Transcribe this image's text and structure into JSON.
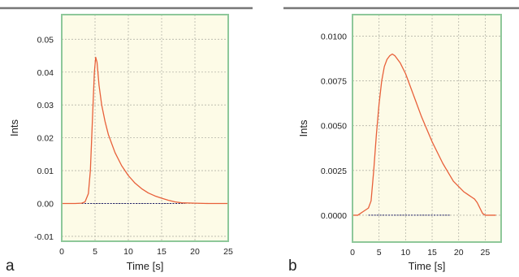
{
  "colors": {
    "plot_background": "#fdfbe7",
    "plot_border": "#8ec89a",
    "top_rule": "#777777",
    "grid": "#b5b5a8",
    "curve": "#e8603a",
    "baseline": "#1a1a66"
  },
  "chart_data": [
    {
      "panel_label": "a",
      "type": "line",
      "title": "",
      "xlabel": "Time [s]",
      "ylabel": "Ints",
      "xlim": [
        0,
        25
      ],
      "ylim": [
        -0.0115,
        0.0575
      ],
      "x_ticks": [
        0,
        5,
        10,
        15,
        20,
        25
      ],
      "y_ticks": [
        -0.01,
        0.0,
        0.01,
        0.02,
        0.03,
        0.04,
        0.05
      ],
      "x_tick_labels": [
        "0",
        "5",
        "10",
        "15",
        "20",
        "25"
      ],
      "y_tick_labels": [
        "-0.01",
        "0.00",
        "0.01",
        "0.02",
        "0.03",
        "0.04",
        "0.05"
      ],
      "grid": true,
      "series": [
        {
          "x": [
            0,
            2,
            3,
            3.5,
            4,
            4.3,
            4.6,
            4.9,
            5.1,
            5.3,
            5.6,
            6,
            6.5,
            7,
            8,
            9,
            10,
            11,
            12,
            13,
            14,
            15,
            16,
            17,
            18,
            20,
            22,
            25
          ],
          "y": [
            0,
            0,
            0.0001,
            0.0005,
            0.003,
            0.01,
            0.025,
            0.04,
            0.0445,
            0.043,
            0.036,
            0.03,
            0.025,
            0.021,
            0.0155,
            0.0115,
            0.0085,
            0.0062,
            0.0045,
            0.0032,
            0.0023,
            0.0016,
            0.001,
            0.0005,
            0.0002,
            0.0001,
            0,
            0
          ]
        }
      ]
    },
    {
      "panel_label": "b",
      "type": "line",
      "title": "",
      "xlabel": "Time [s]",
      "ylabel": "Ints",
      "xlim": [
        0,
        28
      ],
      "ylim": [
        -0.0015,
        0.0112
      ],
      "x_ticks": [
        0,
        5,
        10,
        15,
        20,
        25
      ],
      "y_ticks": [
        0.0,
        0.0025,
        0.005,
        0.0075,
        0.01
      ],
      "x_tick_labels": [
        "0",
        "5",
        "10",
        "15",
        "20",
        "25"
      ],
      "y_tick_labels": [
        "0.0000",
        "0.0025",
        "0.0050",
        "0.0075",
        "0.0100"
      ],
      "grid": true,
      "series": [
        {
          "x": [
            0,
            1,
            1.5,
            2,
            3,
            3.5,
            4,
            4.5,
            5,
            5.5,
            6,
            6.5,
            7,
            7.5,
            8,
            8.5,
            9,
            10,
            11,
            12,
            13,
            14,
            15,
            16,
            17,
            18,
            19,
            20,
            21,
            21.5,
            22,
            22.5,
            23,
            23.5,
            24,
            24.5,
            25,
            27
          ],
          "y": [
            0,
            0,
            0.0001,
            0.0002,
            0.0004,
            0.0008,
            0.0025,
            0.0045,
            0.0062,
            0.0075,
            0.0083,
            0.0087,
            0.0089,
            0.009,
            0.0089,
            0.0087,
            0.0085,
            0.0079,
            0.0071,
            0.0063,
            0.0055,
            0.0048,
            0.0041,
            0.0035,
            0.0029,
            0.0024,
            0.0019,
            0.0016,
            0.0013,
            0.0012,
            0.0011,
            0.001,
            0.0009,
            0.0007,
            0.0004,
            0.0001,
            0,
            0
          ]
        }
      ]
    }
  ]
}
